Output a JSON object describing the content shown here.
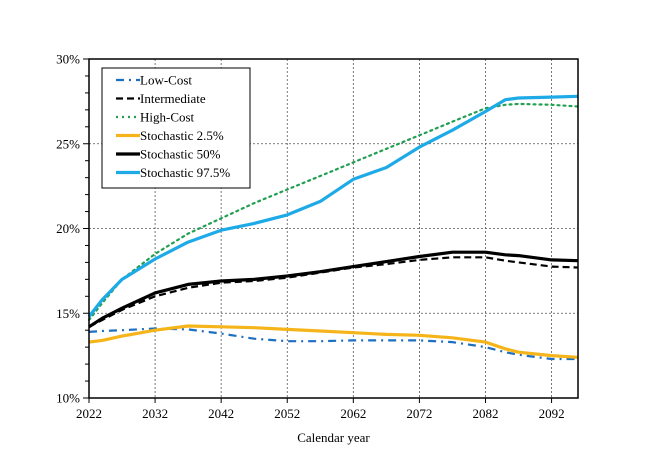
{
  "chart_data": {
    "type": "line",
    "title": "",
    "xlabel": "Calendar year",
    "ylabel": "",
    "xlim": [
      2022,
      2096
    ],
    "ylim": [
      10,
      30
    ],
    "x_ticks": [
      2022,
      2032,
      2042,
      2052,
      2062,
      2072,
      2082,
      2092
    ],
    "x_tick_labels": [
      "2022",
      "2032",
      "2042",
      "2052",
      "2062",
      "2072",
      "2082",
      "2092"
    ],
    "y_ticks": [
      10,
      15,
      20,
      25,
      30
    ],
    "y_tick_labels": [
      "10%",
      "15%",
      "20%",
      "25%",
      "30%"
    ],
    "y_minor_step": 1,
    "grid": true,
    "legend_position": "top-left",
    "x": [
      2022,
      2024,
      2027,
      2032,
      2037,
      2042,
      2047,
      2052,
      2057,
      2062,
      2067,
      2072,
      2077,
      2082,
      2085,
      2087,
      2092,
      2096
    ],
    "series": [
      {
        "name": "Low-Cost",
        "color": "#1f6fc0",
        "style": "dashdot",
        "values": [
          13.9,
          13.95,
          14.0,
          14.1,
          14.05,
          13.8,
          13.5,
          13.35,
          13.35,
          13.4,
          13.4,
          13.4,
          13.3,
          13.0,
          12.7,
          12.55,
          12.3,
          12.3
        ]
      },
      {
        "name": "Intermediate",
        "color": "#000000",
        "style": "dashed",
        "values": [
          14.2,
          14.6,
          15.2,
          16.0,
          16.5,
          16.8,
          16.9,
          17.1,
          17.4,
          17.7,
          17.9,
          18.15,
          18.3,
          18.3,
          18.1,
          18.0,
          17.75,
          17.7
        ]
      },
      {
        "name": "High-Cost",
        "color": "#22a052",
        "style": "dotted",
        "values": [
          14.6,
          15.6,
          17.0,
          18.5,
          19.7,
          20.6,
          21.5,
          22.3,
          23.1,
          23.9,
          24.7,
          25.5,
          26.3,
          27.1,
          27.3,
          27.35,
          27.3,
          27.2
        ]
      },
      {
        "name": "Stochastic 2.5%",
        "color": "#f5b51a",
        "style": "solid",
        "values": [
          13.3,
          13.4,
          13.65,
          14.0,
          14.25,
          14.2,
          14.15,
          14.05,
          13.95,
          13.85,
          13.75,
          13.7,
          13.55,
          13.3,
          12.9,
          12.7,
          12.5,
          12.4
        ]
      },
      {
        "name": "Stochastic 50%",
        "color": "#000000",
        "style": "solid",
        "values": [
          14.2,
          14.7,
          15.3,
          16.2,
          16.7,
          16.9,
          17.0,
          17.2,
          17.45,
          17.75,
          18.05,
          18.35,
          18.6,
          18.6,
          18.45,
          18.4,
          18.15,
          18.1
        ]
      },
      {
        "name": "Stochastic 97.5%",
        "color": "#1eaae6",
        "style": "solid",
        "values": [
          14.8,
          15.8,
          17.0,
          18.2,
          19.2,
          19.9,
          20.3,
          20.8,
          21.6,
          22.9,
          23.6,
          24.8,
          25.8,
          26.9,
          27.6,
          27.7,
          27.75,
          27.8
        ]
      }
    ]
  }
}
